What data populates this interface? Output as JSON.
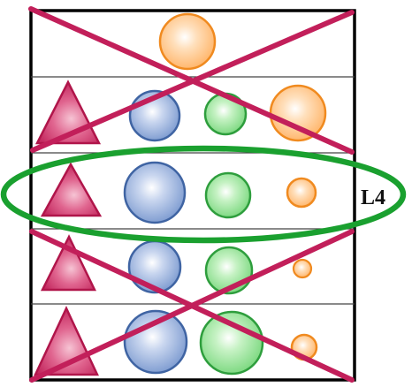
{
  "label": "L4",
  "colors": {
    "cross": "#c21f5a",
    "highlight": "#1aa02f",
    "frame": "#000000",
    "divider": "#444444",
    "triangle_fill": "#d9477a",
    "triangle_stroke": "#b0154a",
    "blue_fill": "#8aa6d6",
    "blue_stroke": "#3f64a3",
    "green_fill": "#8fe090",
    "green_stroke": "#2e9e3d",
    "orange_fill": "#ffbf7a",
    "orange_stroke": "#f08a1f"
  },
  "rows": [
    {
      "name": "row-1",
      "crossed": true,
      "highlighted": false,
      "shapes": [
        "orange-circle-large"
      ]
    },
    {
      "name": "row-2",
      "crossed": true,
      "highlighted": false,
      "shapes": [
        "triangle",
        "blue-circle",
        "green-circle",
        "orange-circle-large"
      ]
    },
    {
      "name": "row-3",
      "crossed": false,
      "highlighted": true,
      "shapes": [
        "triangle",
        "blue-circle",
        "green-circle",
        "orange-circle-small"
      ]
    },
    {
      "name": "row-4",
      "crossed": true,
      "highlighted": false,
      "shapes": [
        "triangle",
        "blue-circle",
        "green-circle",
        "orange-circle-tiny"
      ]
    },
    {
      "name": "row-5",
      "crossed": true,
      "highlighted": false,
      "shapes": [
        "triangle",
        "blue-circle",
        "green-circle",
        "orange-circle-small"
      ]
    }
  ]
}
